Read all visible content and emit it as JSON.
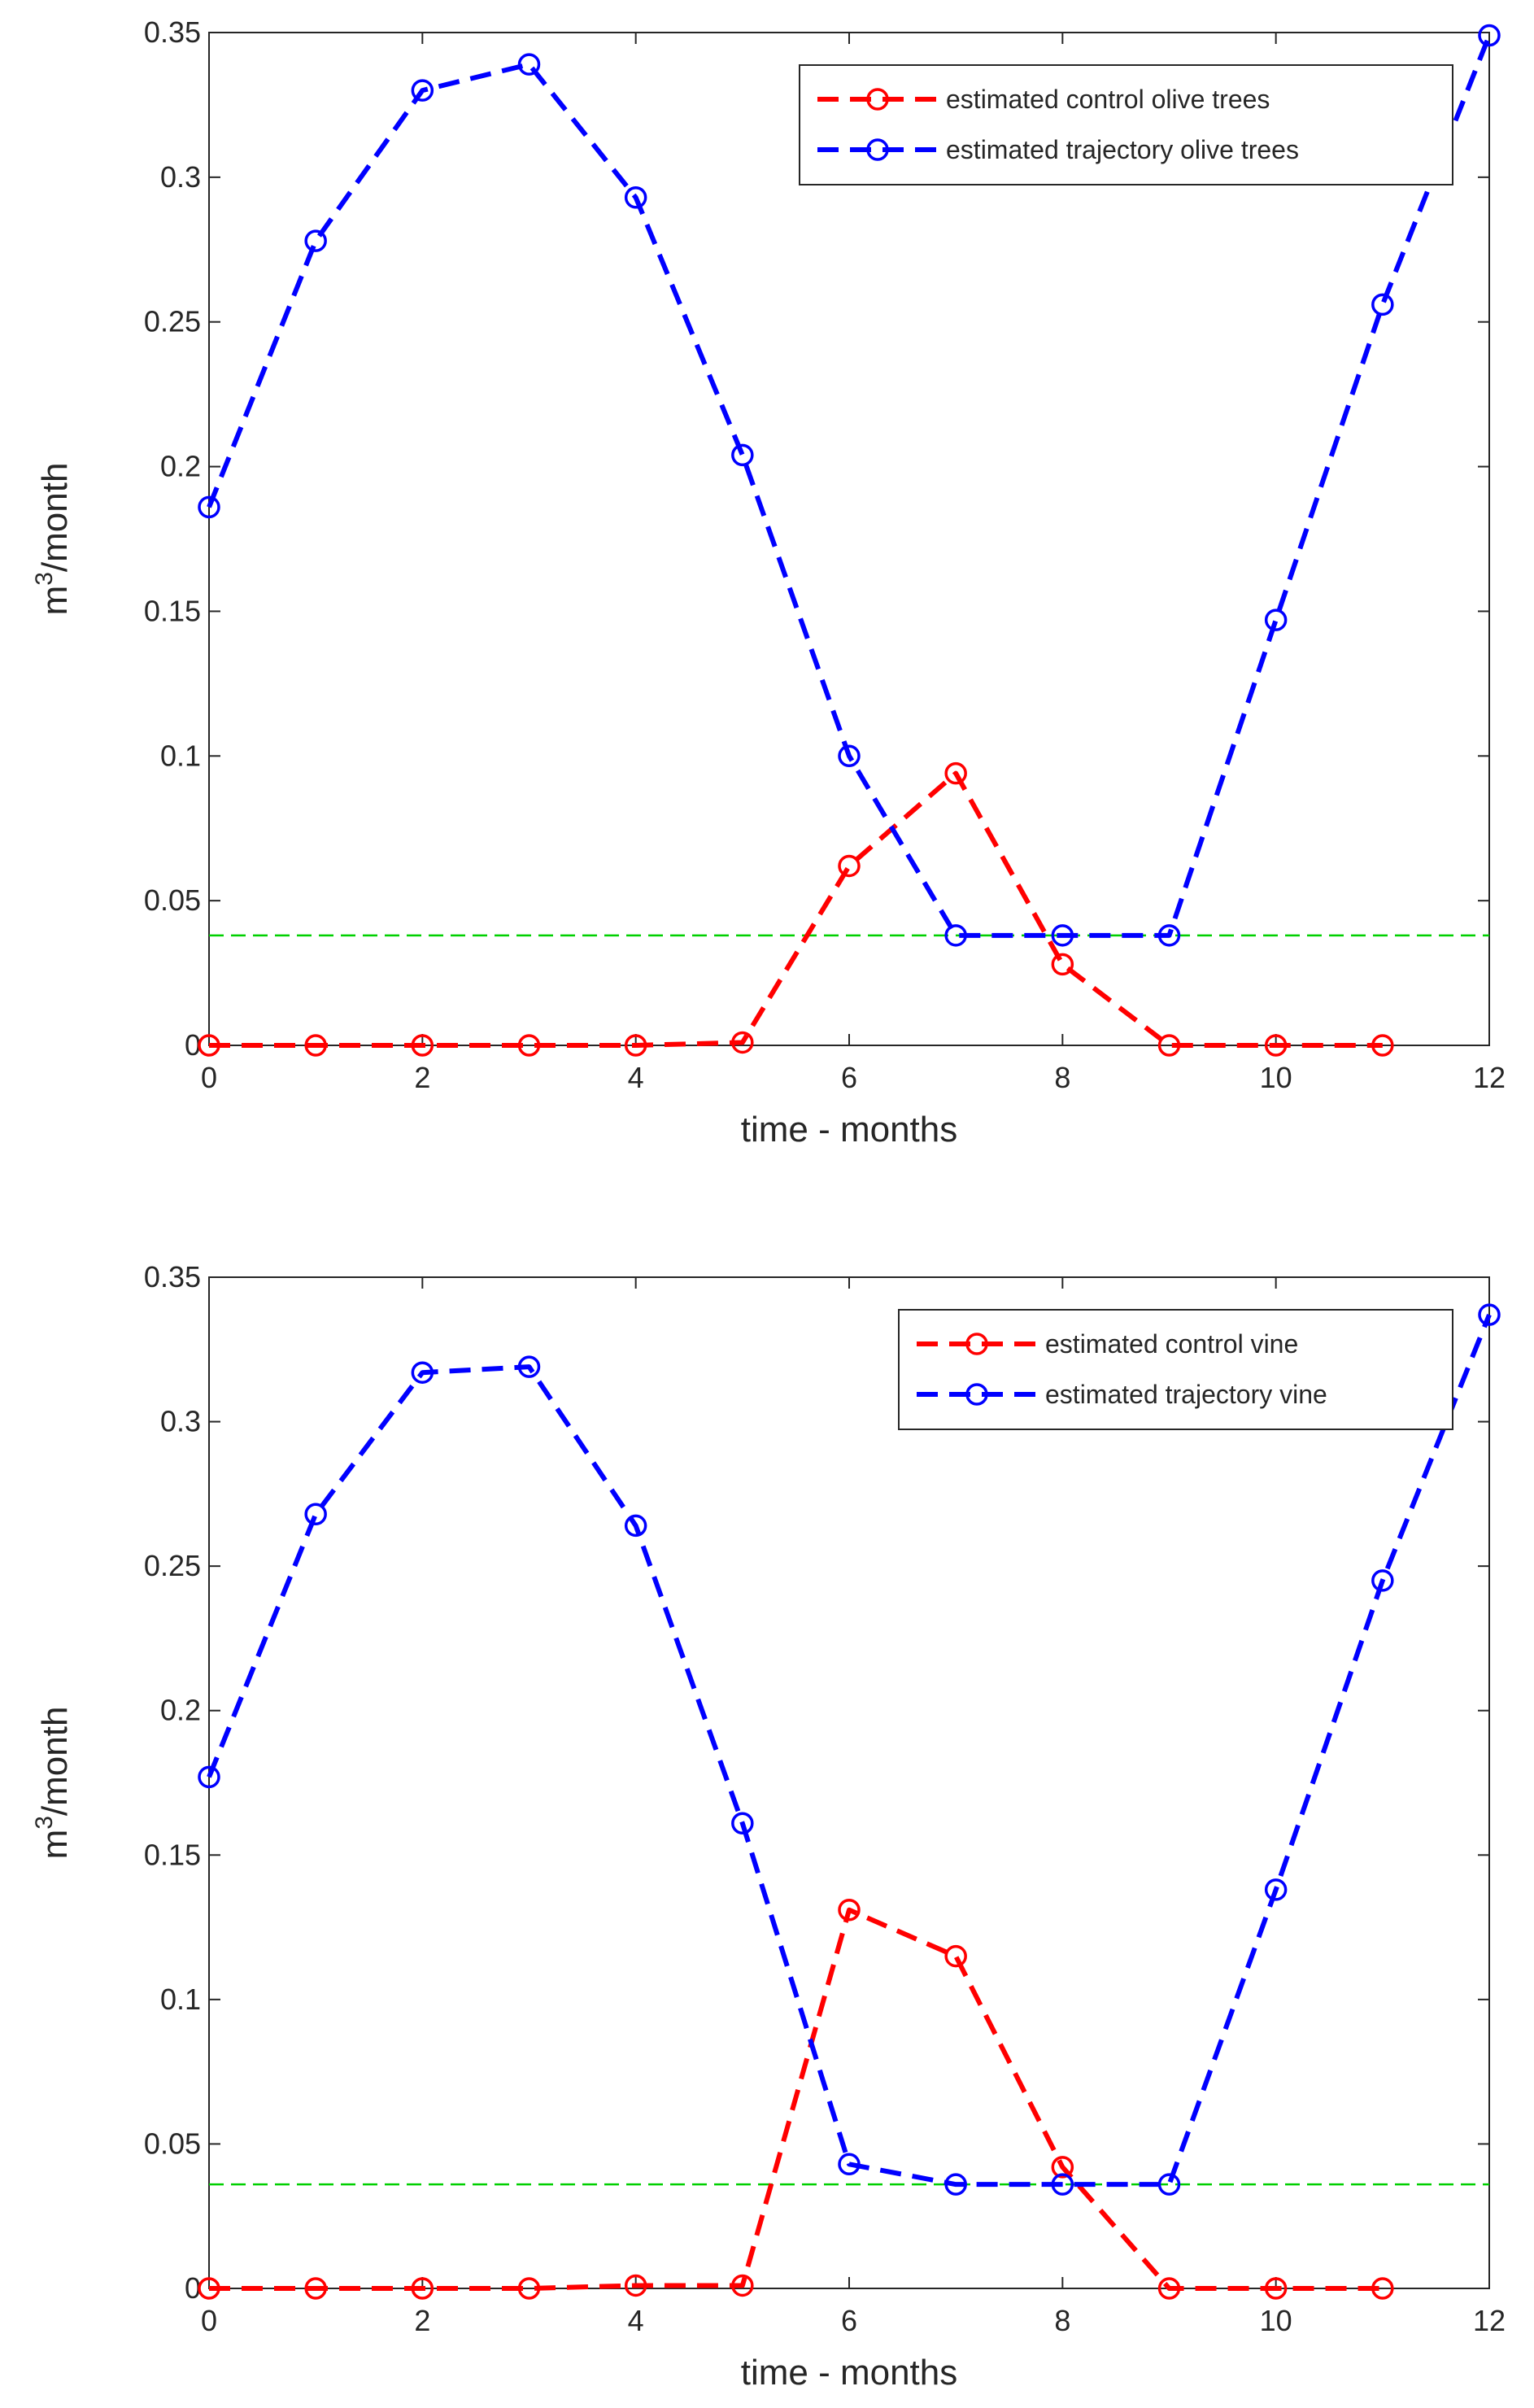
{
  "colors": {
    "control": "#ff0000",
    "trajectory": "#0000ff",
    "threshold": "#00d000",
    "axes": "#262626"
  },
  "chart_data": [
    {
      "type": "line",
      "title": "",
      "xlabel": "time - months",
      "ylabel_base": "m",
      "ylabel_sup": "3",
      "ylabel_rest": "/month",
      "xlim": [
        0,
        12
      ],
      "ylim": [
        0,
        0.35
      ],
      "xticks": [
        0,
        2,
        4,
        6,
        8,
        10,
        12
      ],
      "yticks": [
        0,
        0.05,
        0.1,
        0.15,
        0.2,
        0.25,
        0.3,
        0.35
      ],
      "xtick_labels": [
        "0",
        "2",
        "4",
        "6",
        "8",
        "10",
        "12"
      ],
      "ytick_labels": [
        "0",
        "0.05",
        "0.1",
        "0.15",
        "0.2",
        "0.25",
        "0.3",
        "0.35"
      ],
      "grid": false,
      "legend_position": "top-right",
      "threshold": 0.038,
      "series": [
        {
          "name": "estimated control olive trees",
          "style": "control",
          "x": [
            0,
            1,
            2,
            3,
            4,
            5,
            6,
            7,
            8,
            9,
            10,
            11
          ],
          "values": [
            0,
            0,
            0,
            0,
            0,
            0.001,
            0.062,
            0.094,
            0.028,
            0,
            0,
            0
          ]
        },
        {
          "name": "estimated trajectory olive trees",
          "style": "trajectory",
          "x": [
            0,
            1,
            2,
            3,
            4,
            5,
            6,
            7,
            8,
            9,
            10,
            11,
            12
          ],
          "values": [
            0.186,
            0.278,
            0.33,
            0.339,
            0.293,
            0.204,
            0.1,
            0.038,
            0.038,
            0.038,
            0.147,
            0.256,
            0.349
          ]
        }
      ]
    },
    {
      "type": "line",
      "title": "",
      "xlabel": "time - months",
      "ylabel_base": "m",
      "ylabel_sup": "3",
      "ylabel_rest": "/month",
      "xlim": [
        0,
        12
      ],
      "ylim": [
        0,
        0.35
      ],
      "xticks": [
        0,
        2,
        4,
        6,
        8,
        10,
        12
      ],
      "yticks": [
        0,
        0.05,
        0.1,
        0.15,
        0.2,
        0.25,
        0.3,
        0.35
      ],
      "xtick_labels": [
        "0",
        "2",
        "4",
        "6",
        "8",
        "10",
        "12"
      ],
      "ytick_labels": [
        "0",
        "0.05",
        "0.1",
        "0.15",
        "0.2",
        "0.25",
        "0.3",
        "0.35"
      ],
      "grid": false,
      "legend_position": "top-right",
      "threshold": 0.036,
      "series": [
        {
          "name": "estimated control vine",
          "style": "control",
          "x": [
            0,
            1,
            2,
            3,
            4,
            5,
            6,
            7,
            8,
            9,
            10,
            11
          ],
          "values": [
            0,
            0,
            0,
            0,
            0.001,
            0.001,
            0.131,
            0.115,
            0.042,
            0,
            0,
            0
          ]
        },
        {
          "name": "estimated trajectory vine",
          "style": "trajectory",
          "x": [
            0,
            1,
            2,
            3,
            4,
            5,
            6,
            7,
            8,
            9,
            10,
            11,
            12
          ],
          "values": [
            0.177,
            0.268,
            0.317,
            0.319,
            0.264,
            0.161,
            0.043,
            0.036,
            0.036,
            0.036,
            0.138,
            0.245,
            0.337
          ]
        }
      ]
    }
  ]
}
